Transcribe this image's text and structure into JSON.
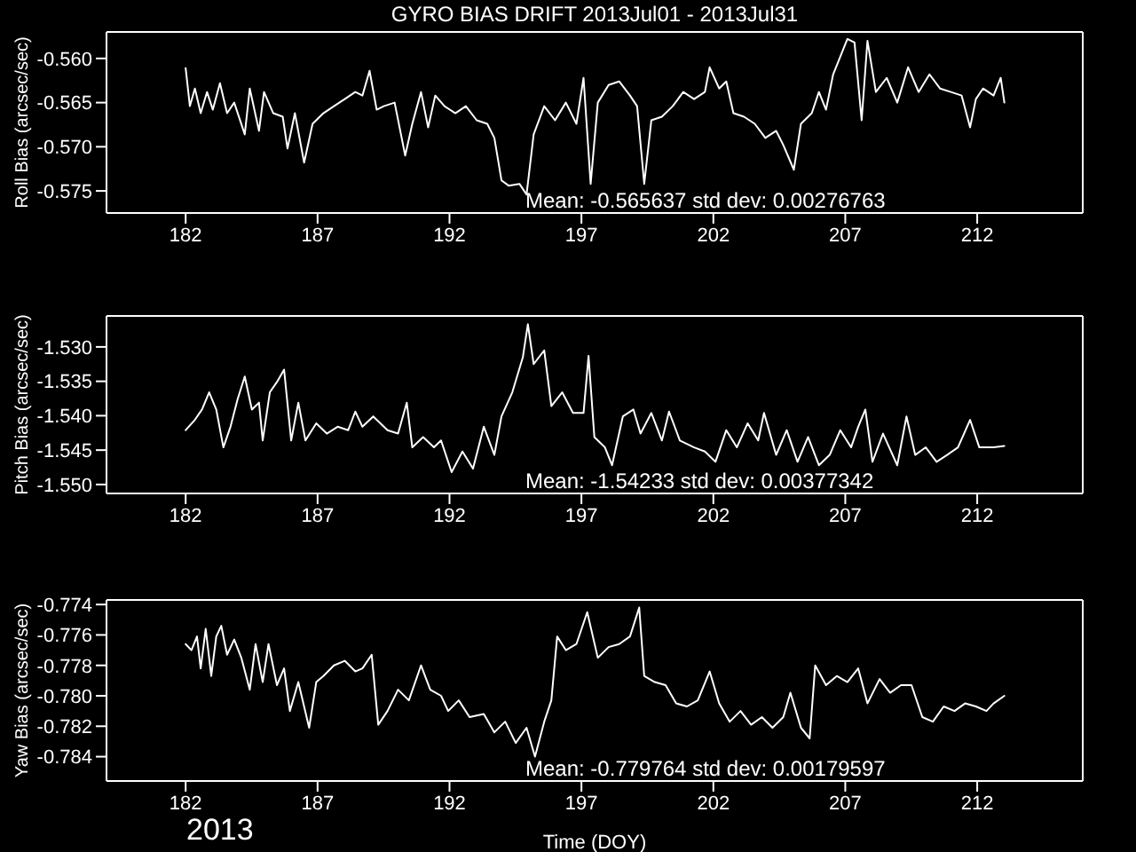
{
  "chart_data": [
    {
      "type": "line",
      "title": "GYRO BIAS DRIFT 2013Jul01 - 2013Jul31",
      "ylabel": "Roll Bias (arcsec/sec)",
      "xlim": [
        179,
        216
      ],
      "xticks": [
        182,
        187,
        192,
        197,
        202,
        207,
        212
      ],
      "ylim": [
        -0.5775,
        -0.557
      ],
      "yticks": [
        {
          "value": -0.575,
          "label": "-0.575"
        },
        {
          "value": -0.57,
          "label": "-0.570"
        },
        {
          "value": -0.565,
          "label": "-0.565"
        },
        {
          "value": -0.56,
          "label": "-0.560"
        }
      ],
      "annotations": [
        "Mean: -0.565637 std dev: 0.00276763"
      ],
      "series": [
        {
          "color": "#ffffff",
          "x": [
            182.0,
            182.16,
            182.35,
            182.57,
            182.81,
            183.03,
            183.3,
            183.57,
            183.84,
            184.24,
            184.43,
            184.78,
            184.97,
            185.32,
            185.68,
            185.86,
            186.14,
            186.49,
            186.81,
            187.22,
            187.62,
            188.03,
            188.43,
            188.7,
            188.97,
            189.24,
            189.51,
            189.92,
            190.32,
            190.59,
            190.92,
            191.19,
            191.46,
            191.81,
            192.22,
            192.62,
            193.03,
            193.43,
            193.7,
            193.97,
            194.24,
            194.65,
            194.92,
            195.19,
            195.59,
            196.0,
            196.41,
            196.81,
            197.08,
            197.35,
            197.62,
            198.03,
            198.43,
            198.84,
            199.11,
            199.38,
            199.65,
            200.05,
            200.46,
            200.86,
            201.27,
            201.68,
            201.86,
            202.22,
            202.49,
            202.76,
            203.16,
            203.57,
            203.97,
            204.38,
            204.65,
            205.05,
            205.32,
            205.73,
            206.0,
            206.27,
            206.54,
            206.81,
            207.08,
            207.35,
            207.62,
            207.84,
            208.16,
            208.57,
            208.97,
            209.38,
            209.78,
            210.19,
            210.59,
            211.0,
            211.41,
            211.73,
            211.95,
            212.22,
            212.62,
            212.89,
            213.03
          ],
          "values": [
            -0.5611,
            -0.5654,
            -0.5634,
            -0.5662,
            -0.5638,
            -0.5658,
            -0.5628,
            -0.5662,
            -0.565,
            -0.5686,
            -0.5634,
            -0.5682,
            -0.5638,
            -0.5662,
            -0.5666,
            -0.5702,
            -0.5662,
            -0.5718,
            -0.5674,
            -0.5662,
            -0.5654,
            -0.5646,
            -0.5638,
            -0.5642,
            -0.5614,
            -0.5658,
            -0.5654,
            -0.565,
            -0.571,
            -0.5674,
            -0.5638,
            -0.5678,
            -0.5642,
            -0.5654,
            -0.5662,
            -0.5654,
            -0.567,
            -0.5674,
            -0.569,
            -0.5738,
            -0.5744,
            -0.5742,
            -0.5754,
            -0.5686,
            -0.5654,
            -0.567,
            -0.565,
            -0.5674,
            -0.5622,
            -0.5742,
            -0.565,
            -0.563,
            -0.5626,
            -0.5642,
            -0.5654,
            -0.5742,
            -0.567,
            -0.5666,
            -0.5654,
            -0.5638,
            -0.5646,
            -0.5638,
            -0.561,
            -0.5634,
            -0.5626,
            -0.5662,
            -0.5666,
            -0.5674,
            -0.569,
            -0.5682,
            -0.5698,
            -0.5726,
            -0.5674,
            -0.5662,
            -0.5638,
            -0.5658,
            -0.5618,
            -0.5598,
            -0.5578,
            -0.5582,
            -0.567,
            -0.558,
            -0.5638,
            -0.5622,
            -0.565,
            -0.561,
            -0.5638,
            -0.5618,
            -0.5634,
            -0.5638,
            -0.5642,
            -0.5678,
            -0.5646,
            -0.5634,
            -0.5642,
            -0.5622,
            -0.565
          ]
        }
      ]
    },
    {
      "type": "line",
      "ylabel": "Pitch Bias (arcsec/sec)",
      "xlim": [
        179,
        216
      ],
      "xticks": [
        182,
        187,
        192,
        197,
        202,
        207,
        212
      ],
      "ylim": [
        -1.5513,
        -1.5255
      ],
      "yticks": [
        {
          "value": -1.55,
          "label": "-1.550"
        },
        {
          "value": -1.545,
          "label": "-1.545"
        },
        {
          "value": -1.54,
          "label": "-1.540"
        },
        {
          "value": -1.535,
          "label": "-1.535"
        },
        {
          "value": -1.53,
          "label": "-1.530"
        }
      ],
      "annotations": [
        "Mean: -1.54233 std dev: 0.00377342"
      ],
      "series": [
        {
          "color": "#ffffff",
          "x": [
            182.0,
            182.35,
            182.62,
            182.89,
            183.16,
            183.43,
            183.7,
            183.97,
            184.24,
            184.51,
            184.78,
            184.92,
            185.19,
            185.46,
            185.73,
            186.0,
            186.27,
            186.54,
            186.95,
            187.35,
            187.76,
            188.16,
            188.43,
            188.7,
            189.11,
            189.65,
            190.05,
            190.38,
            190.59,
            191.0,
            191.41,
            191.68,
            192.08,
            192.49,
            192.89,
            193.3,
            193.7,
            193.97,
            194.38,
            194.78,
            194.97,
            195.19,
            195.59,
            195.86,
            196.27,
            196.68,
            197.08,
            197.27,
            197.49,
            197.89,
            198.16,
            198.57,
            198.97,
            199.24,
            199.65,
            200.05,
            200.32,
            200.73,
            201.27,
            201.68,
            202.08,
            202.49,
            202.89,
            203.3,
            203.7,
            203.92,
            204.38,
            204.78,
            205.19,
            205.59,
            206.0,
            206.41,
            206.81,
            207.22,
            207.49,
            207.76,
            208.03,
            208.43,
            208.97,
            209.32,
            209.65,
            210.05,
            210.46,
            210.86,
            211.27,
            211.73,
            212.08,
            212.62,
            213.03
          ],
          "values": [
            -1.5421,
            -1.5406,
            -1.5391,
            -1.5366,
            -1.5391,
            -1.5446,
            -1.5416,
            -1.5376,
            -1.5343,
            -1.5391,
            -1.5381,
            -1.5436,
            -1.5366,
            -1.5351,
            -1.5333,
            -1.5436,
            -1.5381,
            -1.5436,
            -1.5411,
            -1.5426,
            -1.5416,
            -1.5421,
            -1.5394,
            -1.5416,
            -1.5401,
            -1.5421,
            -1.5426,
            -1.5381,
            -1.5446,
            -1.5431,
            -1.5446,
            -1.5436,
            -1.5482,
            -1.5452,
            -1.5477,
            -1.5416,
            -1.5457,
            -1.5401,
            -1.5366,
            -1.5315,
            -1.5267,
            -1.5325,
            -1.5305,
            -1.5386,
            -1.5366,
            -1.5396,
            -1.5396,
            -1.5313,
            -1.5431,
            -1.5446,
            -1.5472,
            -1.5401,
            -1.5391,
            -1.5426,
            -1.5396,
            -1.5436,
            -1.5394,
            -1.5436,
            -1.5446,
            -1.5452,
            -1.5467,
            -1.5421,
            -1.5446,
            -1.5411,
            -1.5436,
            -1.5396,
            -1.5457,
            -1.5421,
            -1.5467,
            -1.5431,
            -1.5472,
            -1.5457,
            -1.5421,
            -1.5446,
            -1.5416,
            -1.5391,
            -1.5467,
            -1.5426,
            -1.5472,
            -1.5401,
            -1.5457,
            -1.5446,
            -1.5467,
            -1.5457,
            -1.5446,
            -1.5406,
            -1.5446,
            -1.5446,
            -1.5444
          ]
        }
      ]
    },
    {
      "type": "line",
      "ylabel": "Yaw Bias (arcsec/sec)",
      "xlabel": "Time (DOY)",
      "xlim": [
        179,
        216
      ],
      "xticks": [
        182,
        187,
        192,
        197,
        202,
        207,
        212
      ],
      "ylim": [
        -0.7856,
        -0.7737
      ],
      "yticks": [
        {
          "value": -0.784,
          "label": "-0.784"
        },
        {
          "value": -0.782,
          "label": "-0.782"
        },
        {
          "value": -0.78,
          "label": "-0.780"
        },
        {
          "value": -0.778,
          "label": "-0.778"
        },
        {
          "value": -0.776,
          "label": "-0.776"
        },
        {
          "value": -0.774,
          "label": "-0.774"
        }
      ],
      "annotations": [
        "Mean: -0.779764 std dev: 0.00179597",
        "2013"
      ],
      "series": [
        {
          "color": "#ffffff",
          "x": [
            182.0,
            182.22,
            182.43,
            182.57,
            182.76,
            182.97,
            183.16,
            183.35,
            183.57,
            183.84,
            184.11,
            184.43,
            184.65,
            184.92,
            185.14,
            185.46,
            185.73,
            185.95,
            186.27,
            186.68,
            186.95,
            187.22,
            187.62,
            188.03,
            188.43,
            188.7,
            189.05,
            189.3,
            189.65,
            190.05,
            190.46,
            190.92,
            191.27,
            191.68,
            191.95,
            192.35,
            192.76,
            193.3,
            193.7,
            194.11,
            194.51,
            194.92,
            195.24,
            195.59,
            195.86,
            196.08,
            196.41,
            196.81,
            197.22,
            197.62,
            198.03,
            198.43,
            198.84,
            199.19,
            199.38,
            199.78,
            200.19,
            200.59,
            201.0,
            201.41,
            201.86,
            202.22,
            202.62,
            203.03,
            203.43,
            203.84,
            204.24,
            204.65,
            204.92,
            205.32,
            205.65,
            205.86,
            206.27,
            206.68,
            207.08,
            207.49,
            207.84,
            208.3,
            208.7,
            209.11,
            209.51,
            209.92,
            210.32,
            210.73,
            211.14,
            211.54,
            211.95,
            212.35,
            212.62,
            213.03
          ],
          "values": [
            -0.7766,
            -0.777,
            -0.7761,
            -0.7782,
            -0.7756,
            -0.7787,
            -0.7761,
            -0.7754,
            -0.7773,
            -0.7763,
            -0.7775,
            -0.7796,
            -0.7766,
            -0.7791,
            -0.7766,
            -0.7793,
            -0.7782,
            -0.781,
            -0.7791,
            -0.7821,
            -0.7791,
            -0.7787,
            -0.778,
            -0.7777,
            -0.7784,
            -0.7782,
            -0.7773,
            -0.7819,
            -0.781,
            -0.7796,
            -0.7803,
            -0.778,
            -0.7796,
            -0.78,
            -0.781,
            -0.7803,
            -0.7814,
            -0.7812,
            -0.7824,
            -0.7817,
            -0.7831,
            -0.7821,
            -0.784,
            -0.7817,
            -0.7803,
            -0.7761,
            -0.777,
            -0.7766,
            -0.7745,
            -0.7775,
            -0.7768,
            -0.7766,
            -0.7761,
            -0.7742,
            -0.7787,
            -0.7791,
            -0.7793,
            -0.7805,
            -0.7807,
            -0.7803,
            -0.7784,
            -0.7805,
            -0.7817,
            -0.781,
            -0.7819,
            -0.7814,
            -0.7821,
            -0.7814,
            -0.7798,
            -0.7821,
            -0.7828,
            -0.778,
            -0.7793,
            -0.7787,
            -0.7791,
            -0.7782,
            -0.7805,
            -0.7789,
            -0.7798,
            -0.7793,
            -0.7793,
            -0.7814,
            -0.7817,
            -0.7807,
            -0.781,
            -0.7805,
            -0.7807,
            -0.781,
            -0.7805,
            -0.78
          ]
        }
      ]
    }
  ]
}
